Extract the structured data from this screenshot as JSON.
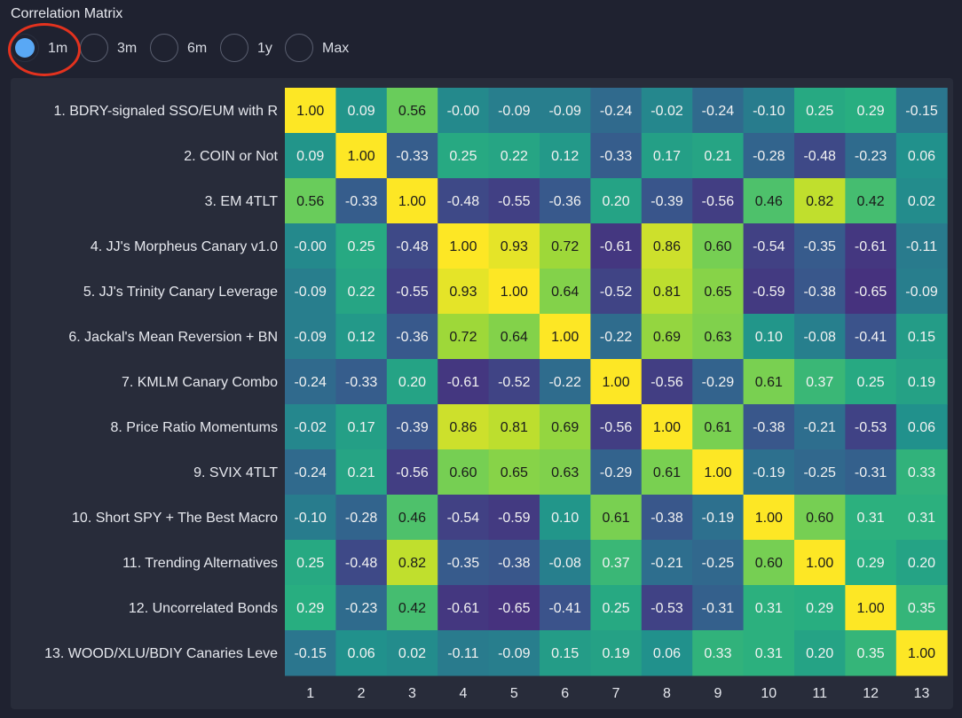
{
  "title": "Correlation Matrix",
  "time_ranges": [
    {
      "label": "1m",
      "selected": true
    },
    {
      "label": "3m",
      "selected": false
    },
    {
      "label": "6m",
      "selected": false
    },
    {
      "label": "1y",
      "selected": false
    },
    {
      "label": "Max",
      "selected": false
    }
  ],
  "colors": {
    "background": "#1f2230",
    "panel": "#282c3a",
    "selected_radio": "#59a8f5",
    "highlight_ring": "#e3321e",
    "colormap": [
      "#46327e",
      "#3b528b",
      "#2c728e",
      "#21918c",
      "#28ae80",
      "#5ec962",
      "#addc30",
      "#fde725"
    ]
  },
  "chart_data": {
    "type": "heatmap",
    "colorscale": "viridis",
    "value_range": [
      -0.65,
      1.0
    ],
    "row_labels": [
      "1. BDRY-signaled SSO/EUM with R",
      "2. COIN or Not",
      "3. EM 4TLT",
      "4. JJ's Morpheus Canary v1.0",
      "5. JJ's Trinity Canary Leverage",
      "6. Jackal's Mean Reversion + BN",
      "7. KMLM Canary Combo",
      "8. Price Ratio Momentums",
      "9. SVIX 4TLT",
      "10. Short SPY + The Best Macro",
      "11. Trending Alternatives",
      "12. Uncorrelated Bonds",
      "13. WOOD/XLU/BDIY Canaries Leve"
    ],
    "col_labels": [
      "1",
      "2",
      "3",
      "4",
      "5",
      "6",
      "7",
      "8",
      "9",
      "10",
      "11",
      "12",
      "13"
    ],
    "values": [
      [
        1.0,
        0.09,
        0.56,
        -0.0,
        -0.09,
        -0.09,
        -0.24,
        -0.02,
        -0.24,
        -0.1,
        0.25,
        0.29,
        -0.15
      ],
      [
        0.09,
        1.0,
        -0.33,
        0.25,
        0.22,
        0.12,
        -0.33,
        0.17,
        0.21,
        -0.28,
        -0.48,
        -0.23,
        0.06
      ],
      [
        0.56,
        -0.33,
        1.0,
        -0.48,
        -0.55,
        -0.36,
        0.2,
        -0.39,
        -0.56,
        0.46,
        0.82,
        0.42,
        0.02
      ],
      [
        -0.0,
        0.25,
        -0.48,
        1.0,
        0.93,
        0.72,
        -0.61,
        0.86,
        0.6,
        -0.54,
        -0.35,
        -0.61,
        -0.11
      ],
      [
        -0.09,
        0.22,
        -0.55,
        0.93,
        1.0,
        0.64,
        -0.52,
        0.81,
        0.65,
        -0.59,
        -0.38,
        -0.65,
        -0.09
      ],
      [
        -0.09,
        0.12,
        -0.36,
        0.72,
        0.64,
        1.0,
        -0.22,
        0.69,
        0.63,
        0.1,
        -0.08,
        -0.41,
        0.15
      ],
      [
        -0.24,
        -0.33,
        0.2,
        -0.61,
        -0.52,
        -0.22,
        1.0,
        -0.56,
        -0.29,
        0.61,
        0.37,
        0.25,
        0.19
      ],
      [
        -0.02,
        0.17,
        -0.39,
        0.86,
        0.81,
        0.69,
        -0.56,
        1.0,
        0.61,
        -0.38,
        -0.21,
        -0.53,
        0.06
      ],
      [
        -0.24,
        0.21,
        -0.56,
        0.6,
        0.65,
        0.63,
        -0.29,
        0.61,
        1.0,
        -0.19,
        -0.25,
        -0.31,
        0.33
      ],
      [
        -0.1,
        -0.28,
        0.46,
        -0.54,
        -0.59,
        0.1,
        0.61,
        -0.38,
        -0.19,
        1.0,
        0.6,
        0.31,
        0.31
      ],
      [
        0.25,
        -0.48,
        0.82,
        -0.35,
        -0.38,
        -0.08,
        0.37,
        -0.21,
        -0.25,
        0.6,
        1.0,
        0.29,
        0.2
      ],
      [
        0.29,
        -0.23,
        0.42,
        -0.61,
        -0.65,
        -0.41,
        0.25,
        -0.53,
        -0.31,
        0.31,
        0.29,
        1.0,
        0.35
      ],
      [
        -0.15,
        0.06,
        0.02,
        -0.11,
        -0.09,
        0.15,
        0.19,
        0.06,
        0.33,
        0.31,
        0.2,
        0.35,
        1.0
      ]
    ],
    "cell_labels": [
      [
        "1.00",
        "0.09",
        "0.56",
        "-0.00",
        "-0.09",
        "-0.09",
        "-0.24",
        "-0.02",
        "-0.24",
        "-0.10",
        "0.25",
        "0.29",
        "-0.15"
      ],
      [
        "0.09",
        "1.00",
        "-0.33",
        "0.25",
        "0.22",
        "0.12",
        "-0.33",
        "0.17",
        "0.21",
        "-0.28",
        "-0.48",
        "-0.23",
        "0.06"
      ],
      [
        "0.56",
        "-0.33",
        "1.00",
        "-0.48",
        "-0.55",
        "-0.36",
        "0.20",
        "-0.39",
        "-0.56",
        "0.46",
        "0.82",
        "0.42",
        "0.02"
      ],
      [
        "-0.00",
        "0.25",
        "-0.48",
        "1.00",
        "0.93",
        "0.72",
        "-0.61",
        "0.86",
        "0.60",
        "-0.54",
        "-0.35",
        "-0.61",
        "-0.11"
      ],
      [
        "-0.09",
        "0.22",
        "-0.55",
        "0.93",
        "1.00",
        "0.64",
        "-0.52",
        "0.81",
        "0.65",
        "-0.59",
        "-0.38",
        "-0.65",
        "-0.09"
      ],
      [
        "-0.09",
        "0.12",
        "-0.36",
        "0.72",
        "0.64",
        "1.00",
        "-0.22",
        "0.69",
        "0.63",
        "0.10",
        "-0.08",
        "-0.41",
        "0.15"
      ],
      [
        "-0.24",
        "-0.33",
        "0.20",
        "-0.61",
        "-0.52",
        "-0.22",
        "1.00",
        "-0.56",
        "-0.29",
        "0.61",
        "0.37",
        "0.25",
        "0.19"
      ],
      [
        "-0.02",
        "0.17",
        "-0.39",
        "0.86",
        "0.81",
        "0.69",
        "-0.56",
        "1.00",
        "0.61",
        "-0.38",
        "-0.21",
        "-0.53",
        "0.06"
      ],
      [
        "-0.24",
        "0.21",
        "-0.56",
        "0.60",
        "0.65",
        "0.63",
        "-0.29",
        "0.61",
        "1.00",
        "-0.19",
        "-0.25",
        "-0.31",
        "0.33"
      ],
      [
        "-0.10",
        "-0.28",
        "0.46",
        "-0.54",
        "-0.59",
        "0.10",
        "0.61",
        "-0.38",
        "-0.19",
        "1.00",
        "0.60",
        "0.31",
        "0.31"
      ],
      [
        "0.25",
        "-0.48",
        "0.82",
        "-0.35",
        "-0.38",
        "-0.08",
        "0.37",
        "-0.21",
        "-0.25",
        "0.60",
        "1.00",
        "0.29",
        "0.20"
      ],
      [
        "0.29",
        "-0.23",
        "0.42",
        "-0.61",
        "-0.65",
        "-0.41",
        "0.25",
        "-0.53",
        "-0.31",
        "0.31",
        "0.29",
        "1.00",
        "0.35"
      ],
      [
        "-0.15",
        "0.06",
        "0.02",
        "-0.11",
        "-0.09",
        "0.15",
        "0.19",
        "0.06",
        "0.33",
        "0.31",
        "0.20",
        "0.35",
        "1.00"
      ]
    ]
  }
}
